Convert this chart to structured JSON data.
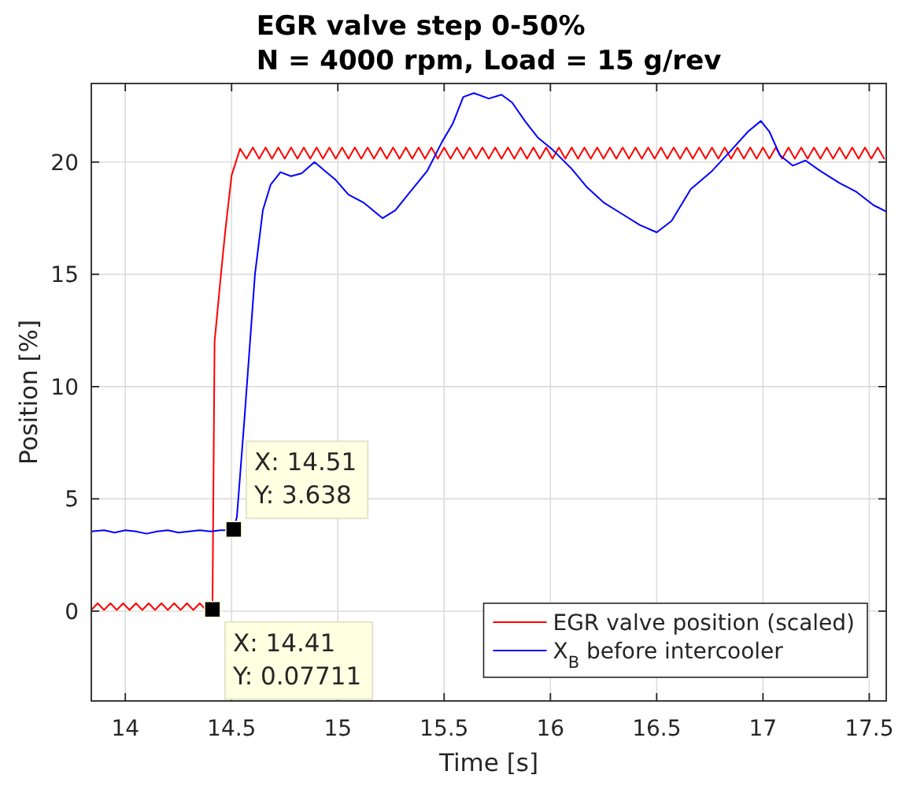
{
  "chart_data": {
    "type": "line",
    "title": "EGR valve step 0-50%",
    "subtitle": "N = 4000 rpm, Load = 15 g/rev",
    "xlabel": "Time [s]",
    "ylabel": "Position [%]",
    "xlim": [
      13.84,
      17.58
    ],
    "ylim": [
      -4,
      23.5
    ],
    "xticks": [
      14,
      14.5,
      15,
      15.5,
      16,
      16.5,
      17,
      17.5
    ],
    "yticks": [
      0,
      5,
      10,
      15,
      20
    ],
    "grid": true,
    "legend": "bottom right",
    "series": [
      {
        "name": "EGR valve position (scaled)",
        "color": "#ff0000",
        "x": [
          13.84,
          13.87,
          13.9,
          13.93,
          13.96,
          13.99,
          14.02,
          14.05,
          14.08,
          14.11,
          14.14,
          14.17,
          14.2,
          14.23,
          14.26,
          14.29,
          14.32,
          14.35,
          14.38,
          14.41,
          14.42,
          14.45,
          14.47,
          14.5,
          14.54,
          14.57,
          14.6,
          14.63,
          14.66,
          14.69,
          14.72,
          14.75,
          14.78,
          14.81,
          14.84,
          14.87,
          14.9,
          14.93,
          14.96,
          14.99,
          15.02,
          15.05,
          15.08,
          15.11,
          15.14,
          15.17,
          15.2,
          15.23,
          15.26,
          15.29,
          15.32,
          15.35,
          15.38,
          15.41,
          15.44,
          15.47,
          15.5,
          15.53,
          15.56,
          15.59,
          15.62,
          15.65,
          15.68,
          15.71,
          15.74,
          15.77,
          15.8,
          15.83,
          15.86,
          15.89,
          15.92,
          15.95,
          15.98,
          16.01,
          16.04,
          16.07,
          16.1,
          16.13,
          16.16,
          16.19,
          16.22,
          16.25,
          16.28,
          16.31,
          16.34,
          16.37,
          16.4,
          16.43,
          16.46,
          16.49,
          16.52,
          16.55,
          16.58,
          16.61,
          16.64,
          16.67,
          16.7,
          16.73,
          16.76,
          16.79,
          16.82,
          16.85,
          16.88,
          16.91,
          16.94,
          16.97,
          17.0,
          17.03,
          17.06,
          17.09,
          17.12,
          17.15,
          17.18,
          17.21,
          17.24,
          17.27,
          17.3,
          17.33,
          17.36,
          17.39,
          17.42,
          17.45,
          17.48,
          17.51,
          17.54,
          17.57
        ],
        "values": [
          0.05,
          0.35,
          0.05,
          0.35,
          0.05,
          0.35,
          0.05,
          0.35,
          0.05,
          0.35,
          0.05,
          0.35,
          0.05,
          0.35,
          0.05,
          0.35,
          0.05,
          0.35,
          0.05,
          0.07711,
          12,
          15,
          16.9,
          19.4,
          20.6,
          20.15,
          20.65,
          20.15,
          20.65,
          20.15,
          20.65,
          20.15,
          20.65,
          20.15,
          20.65,
          20.15,
          20.65,
          20.15,
          20.65,
          20.15,
          20.65,
          20.15,
          20.65,
          20.15,
          20.65,
          20.15,
          20.65,
          20.15,
          20.65,
          20.15,
          20.65,
          20.15,
          20.65,
          20.15,
          20.65,
          20.15,
          20.65,
          20.15,
          20.65,
          20.15,
          20.65,
          20.15,
          20.65,
          20.15,
          20.65,
          20.15,
          20.65,
          20.15,
          20.65,
          20.15,
          20.65,
          20.15,
          20.65,
          20.15,
          20.65,
          20.15,
          20.65,
          20.15,
          20.65,
          20.15,
          20.65,
          20.15,
          20.65,
          20.15,
          20.65,
          20.15,
          20.65,
          20.15,
          20.65,
          20.15,
          20.65,
          20.15,
          20.65,
          20.15,
          20.65,
          20.15,
          20.65,
          20.15,
          20.65,
          20.15,
          20.65,
          20.15,
          20.65,
          20.15,
          20.65,
          20.15,
          20.65,
          20.15,
          20.65,
          20.15,
          20.65,
          20.15,
          20.65,
          20.15,
          20.65,
          20.15,
          20.65,
          20.15,
          20.65,
          20.15,
          20.65,
          20.15,
          20.65,
          20.15,
          20.65,
          20.15
        ]
      },
      {
        "name": "X$_{B}$ before intercooler",
        "color": "#0000ff",
        "x": [
          13.84,
          13.9,
          13.95,
          14.0,
          14.05,
          14.1,
          14.15,
          14.2,
          14.25,
          14.3,
          14.35,
          14.4,
          14.45,
          14.48,
          14.51,
          14.525,
          14.56,
          14.61,
          14.647,
          14.684,
          14.73,
          14.78,
          14.83,
          14.89,
          14.94,
          14.99,
          15.05,
          15.12,
          15.21,
          15.27,
          15.34,
          15.42,
          15.49,
          15.54,
          15.59,
          15.64,
          15.71,
          15.77,
          15.82,
          15.88,
          15.94,
          16.01,
          16.1,
          16.17,
          16.25,
          16.33,
          16.42,
          16.5,
          16.57,
          16.66,
          16.76,
          16.84,
          16.93,
          16.99,
          17.03,
          17.08,
          17.14,
          17.2,
          17.27,
          17.36,
          17.44,
          17.52,
          17.58
        ],
        "values": [
          3.55,
          3.6,
          3.5,
          3.6,
          3.55,
          3.45,
          3.55,
          3.6,
          3.5,
          3.55,
          3.6,
          3.55,
          3.6,
          3.6,
          3.638,
          4.2,
          8.5,
          15.0,
          17.85,
          19.0,
          19.55,
          19.37,
          19.5,
          20.0,
          19.6,
          19.2,
          18.55,
          18.2,
          17.5,
          17.85,
          18.67,
          19.6,
          20.9,
          21.7,
          22.9,
          23.07,
          22.83,
          23.0,
          22.65,
          21.83,
          21.1,
          20.55,
          19.7,
          18.9,
          18.2,
          17.73,
          17.2,
          16.87,
          17.38,
          18.79,
          19.6,
          20.42,
          21.36,
          21.83,
          21.36,
          20.3,
          19.84,
          20.07,
          19.6,
          19.07,
          18.67,
          18.08,
          17.8
        ]
      }
    ],
    "annotations": [
      {
        "text": "X: 14.51\nY: 3.638",
        "x": 14.51,
        "y": 3.638
      },
      {
        "text": "X: 14.41\nY: 0.07711",
        "x": 14.41,
        "y": 0.07711
      }
    ]
  }
}
